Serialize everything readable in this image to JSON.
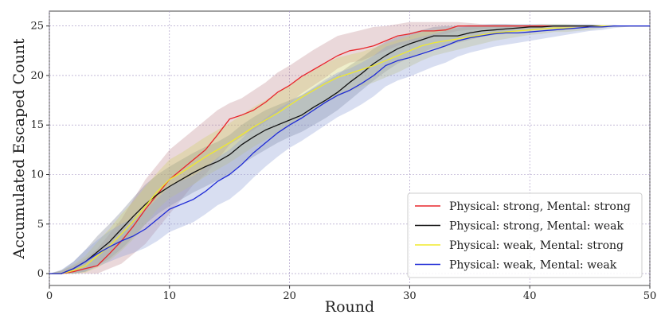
{
  "chart_data": {
    "type": "line",
    "title": "",
    "xlabel": "Round",
    "ylabel": "Accumulated Escaped Count",
    "xlim": [
      0,
      50
    ],
    "ylim": [
      -1.2,
      26.5
    ],
    "xticks": [
      0,
      10,
      20,
      30,
      40,
      50
    ],
    "yticks": [
      0,
      5,
      10,
      15,
      20,
      25
    ],
    "grid": true,
    "legend_position": "lower-right",
    "series": [
      {
        "name": "Physical: strong, Mental: strong",
        "color": "#e8262b",
        "band_color": "#c48f96",
        "x": [
          0,
          1,
          2,
          3,
          4,
          5,
          6,
          7,
          8,
          9,
          10,
          11,
          12,
          13,
          14,
          15,
          16,
          17,
          18,
          19,
          20,
          21,
          22,
          23,
          24,
          25,
          26,
          27,
          28,
          29,
          30,
          31,
          32,
          33,
          34,
          35,
          36,
          37,
          38,
          39,
          40,
          41,
          42,
          43,
          44,
          45,
          46,
          47,
          48,
          49,
          50
        ],
        "y": [
          0,
          0,
          0.2,
          0.5,
          0.8,
          2,
          3.3,
          4.8,
          6.5,
          8,
          9.5,
          10.5,
          11.5,
          12.5,
          14,
          15.6,
          16,
          16.5,
          17.3,
          18.3,
          19,
          19.9,
          20.6,
          21.3,
          22,
          22.5,
          22.7,
          23,
          23.5,
          24,
          24.2,
          24.5,
          24.5,
          24.6,
          25,
          25,
          25,
          25,
          25,
          25,
          25,
          25,
          25,
          25,
          25,
          25,
          25,
          25,
          25,
          25,
          25
        ],
        "lower": [
          0,
          0,
          0,
          0,
          0,
          0.5,
          1,
          2,
          3,
          4.5,
          6,
          7.5,
          9,
          10,
          11.5,
          13,
          13.8,
          14.5,
          15.3,
          16.2,
          17.2,
          18.2,
          19,
          19.8,
          20.7,
          21.3,
          21.5,
          22,
          22.5,
          23,
          23.3,
          23.7,
          24,
          24.2,
          24.5,
          24.6,
          24.7,
          24.8,
          24.8,
          24.9,
          25,
          25,
          25,
          25,
          25,
          25,
          25,
          25,
          25,
          25,
          25
        ],
        "upper": [
          0,
          0.3,
          0.8,
          1.5,
          2.5,
          4,
          5.5,
          7.5,
          9.5,
          11,
          12.5,
          13.5,
          14.5,
          15.5,
          16.5,
          17.2,
          17.7,
          18.5,
          19.3,
          20.3,
          21,
          21.8,
          22.6,
          23.3,
          24,
          24.3,
          24.6,
          24.9,
          25,
          25.2,
          25.4,
          25.4,
          25.4,
          25.4,
          25.4,
          25.3,
          25.2,
          25.2,
          25.2,
          25.1,
          25.1,
          25.1,
          25,
          25,
          25,
          25,
          25,
          25,
          25,
          25,
          25
        ]
      },
      {
        "name": "Physical: strong, Mental: weak",
        "color": "#111111",
        "band_color": "#7d8596",
        "x": [
          0,
          1,
          2,
          3,
          4,
          5,
          6,
          7,
          8,
          9,
          10,
          11,
          12,
          13,
          14,
          15,
          16,
          17,
          18,
          19,
          20,
          21,
          22,
          23,
          24,
          25,
          26,
          27,
          28,
          29,
          30,
          31,
          32,
          33,
          34,
          35,
          36,
          37,
          38,
          39,
          40,
          41,
          42,
          43,
          44,
          45,
          46,
          47,
          48,
          49,
          50
        ],
        "y": [
          0,
          0,
          0.5,
          1.2,
          2.2,
          3.2,
          4.5,
          5.8,
          7,
          8,
          8.8,
          9.5,
          10.2,
          10.8,
          11.3,
          12,
          13,
          13.8,
          14.5,
          15,
          15.5,
          16,
          16.8,
          17.5,
          18.3,
          19.3,
          20.2,
          21.2,
          22,
          22.7,
          23.2,
          23.6,
          24,
          24,
          24,
          24.3,
          24.5,
          24.6,
          24.7,
          24.8,
          24.9,
          24.9,
          25,
          25,
          25,
          25,
          25,
          25,
          25,
          25,
          25
        ],
        "lower": [
          0,
          0,
          0,
          0.2,
          0.8,
          1.5,
          2.5,
          3.7,
          5,
          6,
          6.8,
          7.5,
          8.2,
          8.8,
          9.4,
          10,
          11,
          11.8,
          12.5,
          13.2,
          13.8,
          14.3,
          15,
          15.7,
          16.5,
          17.5,
          18.5,
          19.5,
          20.4,
          21.2,
          21.8,
          22.3,
          22.8,
          23,
          23.3,
          23.6,
          23.9,
          24.1,
          24.3,
          24.5,
          24.6,
          24.7,
          24.8,
          24.9,
          25,
          25,
          25,
          25,
          25,
          25,
          25
        ],
        "upper": [
          0,
          0.3,
          1.2,
          2.4,
          3.8,
          5,
          6.3,
          7.7,
          9,
          10,
          10.8,
          11.5,
          12.2,
          12.8,
          13.3,
          14,
          15,
          15.8,
          16.5,
          17,
          17.5,
          18,
          18.7,
          19.4,
          20.1,
          21,
          21.8,
          22.7,
          23.4,
          23.9,
          24.3,
          24.6,
          24.9,
          25,
          25,
          25.1,
          25.1,
          25.1,
          25.1,
          25.1,
          25.1,
          25.1,
          25,
          25,
          25,
          25,
          25,
          25,
          25,
          25,
          25
        ]
      },
      {
        "name": "Physical: weak, Mental: strong",
        "color": "#f0ea2c",
        "band_color": "#d2d26b",
        "x": [
          0,
          1,
          2,
          3,
          4,
          5,
          6,
          7,
          8,
          9,
          10,
          11,
          12,
          13,
          14,
          15,
          16,
          17,
          18,
          19,
          20,
          21,
          22,
          23,
          24,
          25,
          26,
          27,
          28,
          29,
          30,
          31,
          32,
          33,
          34,
          35,
          36,
          37,
          38,
          39,
          40,
          41,
          42,
          43,
          44,
          45,
          46,
          47,
          48,
          49,
          50
        ],
        "y": [
          0,
          0,
          0.3,
          0.8,
          1.8,
          2.8,
          4,
          5.3,
          6.8,
          8.3,
          9.5,
          10.2,
          11,
          11.8,
          12.5,
          13.2,
          14,
          14.8,
          15.5,
          16.2,
          17,
          17.8,
          18.5,
          19.2,
          19.8,
          20.2,
          20.6,
          21,
          21.5,
          22,
          22.5,
          23,
          23.3,
          23.5,
          23.7,
          23.9,
          24.1,
          24.3,
          24.4,
          24.5,
          24.6,
          24.7,
          24.8,
          24.8,
          24.8,
          24.9,
          25,
          25,
          25,
          25,
          25
        ],
        "lower": [
          0,
          0,
          0,
          0.1,
          0.6,
          1.3,
          2.3,
          3.5,
          5,
          6.5,
          7.6,
          8.3,
          9,
          9.8,
          10.5,
          11.2,
          12,
          12.8,
          13.5,
          14.2,
          15,
          15.8,
          16.5,
          17.2,
          17.9,
          18.4,
          18.9,
          19.3,
          19.8,
          20.3,
          20.9,
          21.5,
          22,
          22.3,
          22.6,
          22.9,
          23.2,
          23.5,
          23.7,
          23.9,
          24.1,
          24.2,
          24.4,
          24.4,
          24.5,
          24.6,
          24.8,
          24.9,
          25,
          25,
          25
        ],
        "upper": [
          0,
          0.3,
          0.9,
          1.8,
          3.2,
          4.5,
          6,
          7.3,
          8.8,
          10.2,
          11.5,
          12.2,
          13,
          13.8,
          14.5,
          15.2,
          16,
          16.8,
          17.5,
          18.2,
          19,
          19.8,
          20.5,
          21.2,
          21.8,
          22.1,
          22.4,
          22.8,
          23.2,
          23.6,
          24,
          24.4,
          24.6,
          24.7,
          24.8,
          24.9,
          25,
          25.1,
          25.1,
          25.1,
          25.1,
          25.2,
          25.2,
          25.2,
          25.1,
          25.1,
          25.1,
          25,
          25,
          25,
          25
        ]
      },
      {
        "name": "Physical: weak, Mental: weak",
        "color": "#1f2bd6",
        "band_color": "#8fa0d8",
        "x": [
          0,
          1,
          2,
          3,
          4,
          5,
          6,
          7,
          8,
          9,
          10,
          11,
          12,
          13,
          14,
          15,
          16,
          17,
          18,
          19,
          20,
          21,
          22,
          23,
          24,
          25,
          26,
          27,
          28,
          29,
          30,
          31,
          32,
          33,
          34,
          35,
          36,
          37,
          38,
          39,
          40,
          41,
          42,
          43,
          44,
          45,
          46,
          47,
          48,
          49,
          50
        ],
        "y": [
          0,
          0,
          0.5,
          1.2,
          2,
          2.7,
          3.3,
          3.8,
          4.5,
          5.5,
          6.5,
          7,
          7.5,
          8.3,
          9.3,
          10,
          11,
          12.2,
          13.2,
          14.2,
          15,
          15.7,
          16.5,
          17.3,
          18,
          18.5,
          19.2,
          20,
          21,
          21.5,
          21.8,
          22.2,
          22.6,
          23,
          23.5,
          23.8,
          24,
          24.2,
          24.3,
          24.3,
          24.4,
          24.5,
          24.6,
          24.7,
          24.8,
          24.9,
          24.9,
          25,
          25,
          25,
          25
        ],
        "lower": [
          0,
          0,
          0,
          0.2,
          0.7,
          1.2,
          1.7,
          2.1,
          2.6,
          3.3,
          4.2,
          4.7,
          5.2,
          6,
          6.9,
          7.5,
          8.5,
          9.7,
          10.8,
          11.8,
          12.7,
          13.4,
          14.2,
          15,
          15.8,
          16.4,
          17.1,
          17.9,
          18.9,
          19.5,
          19.9,
          20.4,
          20.9,
          21.3,
          21.9,
          22.3,
          22.6,
          22.9,
          23.1,
          23.3,
          23.5,
          23.7,
          23.9,
          24.1,
          24.3,
          24.5,
          24.6,
          24.8,
          24.9,
          25,
          25
        ],
        "upper": [
          0,
          0.4,
          1.2,
          2.4,
          3.4,
          4.3,
          5,
          5.6,
          6.4,
          7.6,
          8.8,
          9.4,
          9.9,
          10.7,
          11.7,
          12.5,
          13.6,
          14.8,
          15.7,
          16.6,
          17.3,
          18,
          18.8,
          19.6,
          20.3,
          20.7,
          21.3,
          22,
          22.9,
          23.3,
          23.6,
          23.9,
          24.2,
          24.5,
          24.8,
          25,
          25.1,
          25.2,
          25.2,
          25.2,
          25.2,
          25.2,
          25.2,
          25.2,
          25.2,
          25.2,
          25.1,
          25.1,
          25,
          25,
          25
        ]
      }
    ]
  }
}
